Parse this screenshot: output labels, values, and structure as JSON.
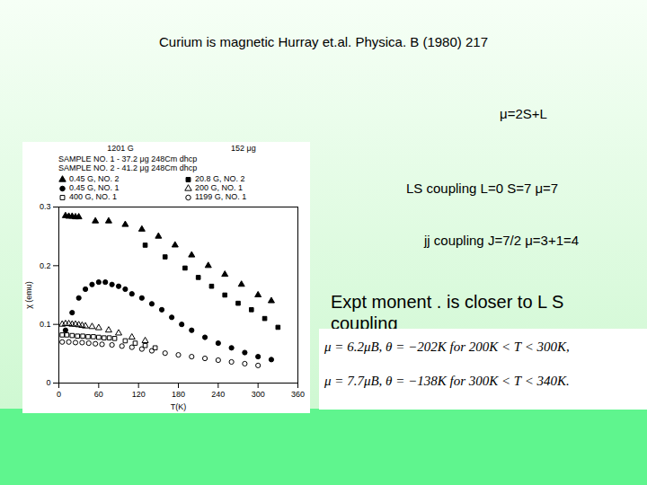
{
  "slide": {
    "title": "Curium is magnetic   Hurray et.al. Physica. B (1980) 217",
    "texts": [
      "μ=2S+L",
      "LS coupling L=0 S=7 μ=7",
      "jj coupling J=7/2 μ=3+1=4",
      "Expt monent . is closer to L S coupling"
    ],
    "formulas": [
      "μ = 6.2μB,  θ = −202K  for 200K < T < 300K,",
      "μ = 7.7μB,  θ = −138K  for 300K < T < 340K."
    ]
  },
  "chart_data": {
    "type": "scatter",
    "annotations": [
      "1201 G",
      "152 μg",
      "SAMPLE NO. 1 - 37.2 μg 248Cm dhcp",
      "SAMPLE NO. 2 - 41.2 μg 248Cm dhcp"
    ],
    "x_label": "T(K)",
    "y_label": "χ (emu)",
    "xlim": [
      0,
      360
    ],
    "xticks": [
      0,
      60,
      120,
      180,
      240,
      300,
      360
    ],
    "ylim": [
      0,
      0.3
    ],
    "yticks": [
      0,
      0.1,
      0.2,
      0.3
    ],
    "grid": false,
    "series": [
      {
        "name": "0.45 G, NO. 2",
        "color": "#000000",
        "marker": "triangle",
        "x": [
          10,
          15,
          20,
          25,
          30,
          55,
          75,
          100,
          125,
          150,
          175,
          200,
          225,
          250,
          275,
          300,
          320
        ],
        "values": [
          0.285,
          0.284,
          0.284,
          0.283,
          0.283,
          0.276,
          0.276,
          0.27,
          0.262,
          0.25,
          0.235,
          0.218,
          0.2,
          0.185,
          0.168,
          0.15,
          0.14
        ]
      },
      {
        "name": "20.8 G, NO. 2",
        "color": "#000000",
        "marker": "square",
        "x": [
          130,
          160,
          190,
          210,
          230,
          250,
          270,
          290,
          310,
          330
        ],
        "values": [
          0.235,
          0.215,
          0.196,
          0.18,
          0.165,
          0.15,
          0.136,
          0.125,
          0.11,
          0.095
        ]
      },
      {
        "name": "0.45 G, NO. 1",
        "color": "#000000",
        "marker": "circle",
        "x": [
          10,
          20,
          30,
          40,
          50,
          60,
          70,
          80,
          90,
          100,
          110,
          125,
          140,
          155,
          170,
          185,
          200,
          220,
          240,
          260,
          280,
          300,
          320
        ],
        "values": [
          0.09,
          0.12,
          0.145,
          0.16,
          0.168,
          0.172,
          0.172,
          0.168,
          0.165,
          0.16,
          0.152,
          0.145,
          0.135,
          0.125,
          0.112,
          0.1,
          0.09,
          0.078,
          0.068,
          0.06,
          0.052,
          0.045,
          0.04
        ]
      },
      {
        "name": "200 G, NO. 1",
        "color": "#000000",
        "marker": "triangle-open",
        "x": [
          5,
          10,
          15,
          20,
          25,
          30,
          35,
          40,
          50,
          60,
          75,
          90,
          110,
          130
        ],
        "values": [
          0.1,
          0.101,
          0.101,
          0.1,
          0.1,
          0.099,
          0.098,
          0.097,
          0.096,
          0.094,
          0.09,
          0.085,
          0.078,
          0.072
        ]
      },
      {
        "name": "400 G, NO. 1",
        "color": "#000000",
        "marker": "square-open",
        "x": [
          5,
          12,
          20,
          28,
          36,
          44,
          52,
          60,
          68,
          76,
          84,
          100,
          115,
          130,
          145
        ],
        "values": [
          0.082,
          0.082,
          0.081,
          0.08,
          0.08,
          0.079,
          0.079,
          0.078,
          0.077,
          0.077,
          0.076,
          0.072,
          0.068,
          0.064,
          0.06
        ]
      },
      {
        "name": "1199 G, NO. 1",
        "color": "#000000",
        "marker": "circle-open",
        "x": [
          5,
          15,
          25,
          35,
          45,
          55,
          65,
          80,
          95,
          110,
          125,
          140,
          160,
          180,
          200,
          220,
          240,
          260,
          280,
          300
        ],
        "values": [
          0.07,
          0.07,
          0.069,
          0.069,
          0.068,
          0.067,
          0.066,
          0.065,
          0.063,
          0.061,
          0.058,
          0.055,
          0.051,
          0.048,
          0.045,
          0.042,
          0.039,
          0.036,
          0.033,
          0.03
        ]
      }
    ]
  }
}
